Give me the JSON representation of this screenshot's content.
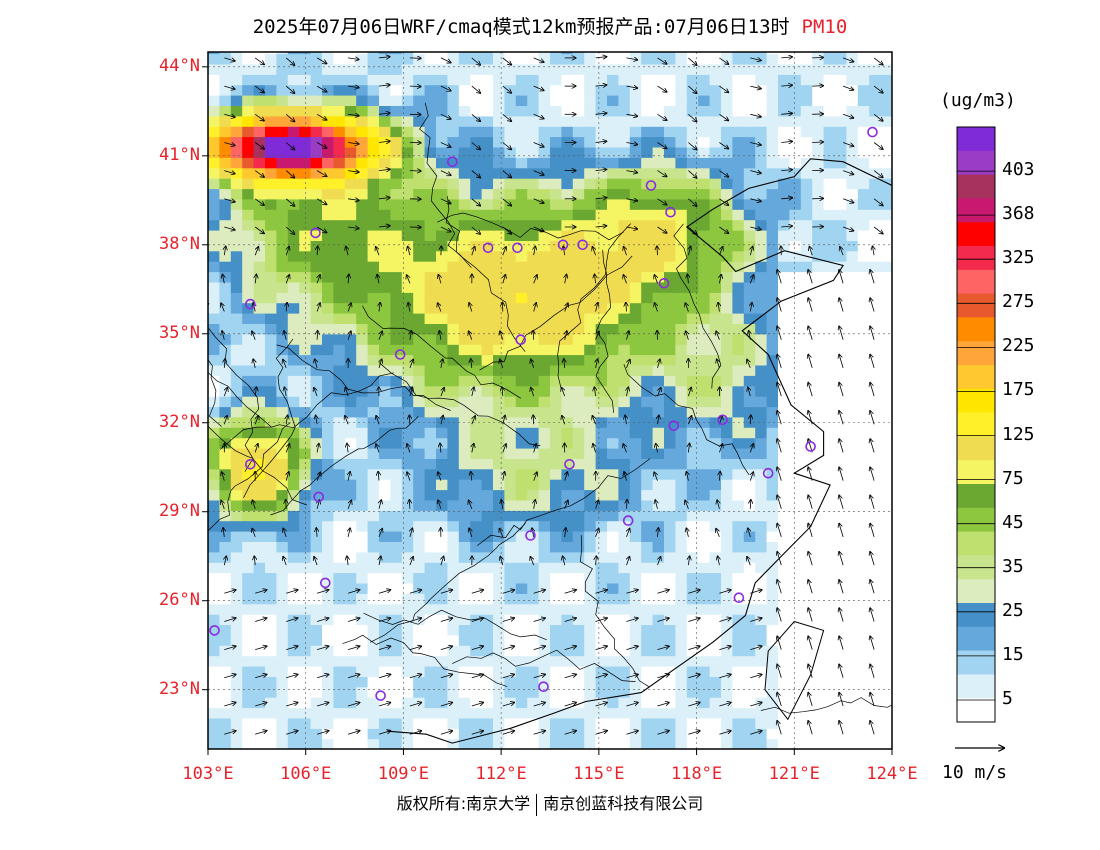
{
  "title": {
    "main": "2025年07月06日WRF/cmaq模式12km预报产品:07月06日13时",
    "variable": "PM10",
    "variable_color": "#e8222a"
  },
  "axes": {
    "lat_labels": [
      "44°N",
      "41°N",
      "38°N",
      "35°N",
      "32°N",
      "29°N",
      "26°N",
      "23°N"
    ],
    "lat_values": [
      44,
      41,
      38,
      35,
      32,
      29,
      26,
      23
    ],
    "lon_labels": [
      "103°E",
      "106°E",
      "109°E",
      "112°E",
      "115°E",
      "118°E",
      "121°E",
      "124°E"
    ],
    "lon_values": [
      103,
      106,
      109,
      112,
      115,
      118,
      121,
      124
    ],
    "lon_range": [
      103,
      124
    ],
    "lat_range": [
      21,
      44.5
    ],
    "label_color": "#e8222a"
  },
  "legend": {
    "unit": "(ug/m3)",
    "labels": [
      "403",
      "368",
      "325",
      "275",
      "225",
      "175",
      "125",
      "75",
      "45",
      "35",
      "25",
      "15",
      "5"
    ],
    "colors": [
      "#7f2bd8",
      "#9b3cc6",
      "#a8325e",
      "#c8196e",
      "#ff0000",
      "#f3294e",
      "#ff6464",
      "#e85a2e",
      "#ff8c00",
      "#ffa53a",
      "#ffc82e",
      "#ffe600",
      "#fff02a",
      "#f0dc50",
      "#f5f564",
      "#6aa832",
      "#8dc63f",
      "#bfe06e",
      "#c8e48c",
      "#dcecbe",
      "#4690c8",
      "#64a8dc",
      "#a0d4f0",
      "#dcf0fa",
      "#ffffff"
    ]
  },
  "vector_reference": {
    "label": "10 m/s"
  },
  "cities": [
    {
      "lon": 103.2,
      "lat": 25.0
    },
    {
      "lon": 104.3,
      "lat": 30.6
    },
    {
      "lon": 104.3,
      "lat": 36.0
    },
    {
      "lon": 106.6,
      "lat": 26.6
    },
    {
      "lon": 106.4,
      "lat": 29.5
    },
    {
      "lon": 106.3,
      "lat": 38.4
    },
    {
      "lon": 108.9,
      "lat": 34.3
    },
    {
      "lon": 108.3,
      "lat": 22.8
    },
    {
      "lon": 110.5,
      "lat": 40.8
    },
    {
      "lon": 111.6,
      "lat": 37.9
    },
    {
      "lon": 112.5,
      "lat": 37.9
    },
    {
      "lon": 112.6,
      "lat": 34.8
    },
    {
      "lon": 113.9,
      "lat": 38.0
    },
    {
      "lon": 114.1,
      "lat": 30.6
    },
    {
      "lon": 112.9,
      "lat": 28.2
    },
    {
      "lon": 113.3,
      "lat": 23.1
    },
    {
      "lon": 115.9,
      "lat": 28.7
    },
    {
      "lon": 116.6,
      "lat": 40.0
    },
    {
      "lon": 117.2,
      "lat": 39.1
    },
    {
      "lon": 117.0,
      "lat": 36.7
    },
    {
      "lon": 117.3,
      "lat": 31.9
    },
    {
      "lon": 118.8,
      "lat": 32.1
    },
    {
      "lon": 120.2,
      "lat": 30.3
    },
    {
      "lon": 119.3,
      "lat": 26.1
    },
    {
      "lon": 121.5,
      "lat": 31.2
    },
    {
      "lon": 123.4,
      "lat": 41.8
    },
    {
      "lon": 114.5,
      "lat": 38.0
    }
  ],
  "copyright": {
    "left": "版权所有:南京大学",
    "right": "南京创蓝科技有限公司"
  }
}
